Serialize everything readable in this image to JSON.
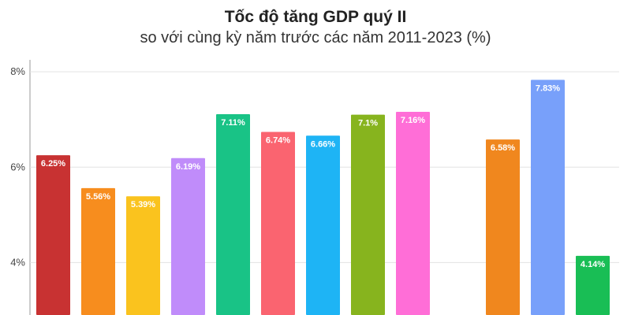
{
  "chart_data": {
    "type": "bar",
    "title": "Tốc độ tăng GDP quý II",
    "subtitle": "so với cùng kỳ năm trước các năm 2011-2023 (%)",
    "xlabel": "",
    "ylabel": "",
    "ylim": [
      2.9,
      8.25
    ],
    "yticks": [
      {
        "value": 4,
        "label": "4%"
      },
      {
        "value": 6,
        "label": "6%"
      },
      {
        "value": 8,
        "label": "8%"
      }
    ],
    "grid": true,
    "legend": "none",
    "values": [
      6.25,
      5.56,
      5.39,
      6.19,
      7.11,
      6.74,
      6.66,
      7.1,
      7.16,
      null,
      6.58,
      7.83,
      4.14
    ],
    "value_labels": [
      "6.25%",
      "5.56%",
      "5.39%",
      "6.19%",
      "7.11%",
      "6.74%",
      "6.66%",
      "7.1%",
      "7.16%",
      "",
      "6.58%",
      "7.83%",
      "4.14%"
    ],
    "colors": [
      "#c83232",
      "#f78d1e",
      "#fac31e",
      "#c08cfa",
      "#19c386",
      "#fa6470",
      "#1eb4f5",
      "#87b41e",
      "#ff6ed7",
      "#ffffff",
      "#f0871e",
      "#78a0fa",
      "#19be55"
    ]
  }
}
